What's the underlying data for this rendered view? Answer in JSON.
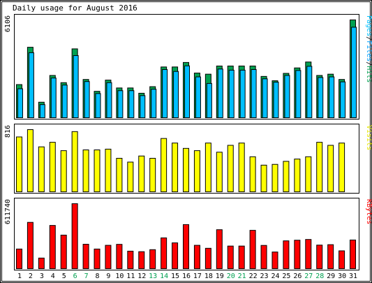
{
  "chart_data": {
    "type": "bar",
    "title": "Daily usage for August 2016",
    "categories": [
      "1",
      "2",
      "3",
      "4",
      "5",
      "6",
      "7",
      "8",
      "9",
      "10",
      "11",
      "12",
      "13",
      "14",
      "15",
      "16",
      "17",
      "18",
      "19",
      "20",
      "21",
      "22",
      "23",
      "24",
      "25",
      "26",
      "27",
      "28",
      "29",
      "30",
      "31"
    ],
    "weekend_days": [
      "6",
      "7",
      "13",
      "14",
      "20",
      "21",
      "27",
      "28"
    ],
    "panels": [
      {
        "key": "traffic",
        "y_max_label": "6106",
        "y_max": 6106,
        "side_label": [
          {
            "text": "Pages",
            "color": "#00c0ff"
          },
          {
            "text": "/",
            "color": "#000000"
          },
          {
            "text": "Files",
            "color": "#00a0ff"
          },
          {
            "text": "/",
            "color": "#000000"
          },
          {
            "text": "Hits",
            "color": "#009f50"
          }
        ],
        "series": [
          {
            "name": "Hits",
            "color": "#00a050",
            "values": [
              2070,
              4400,
              970,
              2640,
              2190,
              4300,
              2390,
              1650,
              2350,
              1860,
              1860,
              1530,
              1940,
              3170,
              3170,
              3450,
              2790,
              2720,
              3230,
              3230,
              3230,
              3230,
              2580,
              2310,
              2770,
              3110,
              3480,
              2640,
              2720,
              2390,
              6106
            ]
          },
          {
            "name": "Files",
            "color": "#00bfff",
            "values": [
              1810,
              4060,
              820,
              2480,
              2040,
              3880,
              2260,
              1510,
              2190,
              1690,
              1690,
              1380,
              1780,
              3010,
              2890,
              3240,
              2550,
              2140,
              3040,
              2970,
              2970,
              3010,
              2430,
              2220,
              2640,
              2950,
              3210,
              2510,
              2550,
              2240,
              5650
            ]
          },
          {
            "name": "Pages",
            "color": "#3b50e0",
            "values": [
              0,
              0,
              0,
              0,
              0,
              0,
              0,
              0,
              0,
              0,
              0,
              0,
              0,
              0,
              0,
              0,
              0,
              0,
              0,
              0,
              0,
              0,
              0,
              0,
              0,
              0,
              0,
              0,
              0,
              0,
              0
            ]
          }
        ]
      },
      {
        "key": "visits",
        "y_max_label": "816",
        "y_max": 816,
        "side_label": [
          {
            "text": "Visits",
            "color": "#e6e600"
          }
        ],
        "series": [
          {
            "name": "Visits",
            "color": "#ffff00",
            "values": [
              720,
              816,
              590,
              650,
              540,
              790,
              550,
              550,
              560,
              440,
              390,
              470,
              440,
              700,
              640,
              570,
              540,
              640,
              520,
              610,
              640,
              460,
              350,
              360,
              400,
              430,
              460,
              650,
              610,
              640,
              0
            ]
          }
        ]
      },
      {
        "key": "kbytes",
        "y_max_label": "611740",
        "y_max": 611740,
        "side_label": [
          {
            "text": "KBytes",
            "color": "#ff0000"
          }
        ],
        "series": [
          {
            "name": "KBytes",
            "color": "#ff0000",
            "values": [
              185000,
              436000,
              100000,
              407000,
              316000,
              611740,
              230000,
              185000,
              220000,
              229000,
              165000,
              160000,
              179000,
              290000,
              243000,
              415000,
              220000,
              192000,
              367000,
              213000,
              213000,
              361000,
              219000,
              157000,
              262000,
              268000,
              275000,
              222000,
              226000,
              168000,
              270000
            ]
          }
        ]
      }
    ]
  }
}
